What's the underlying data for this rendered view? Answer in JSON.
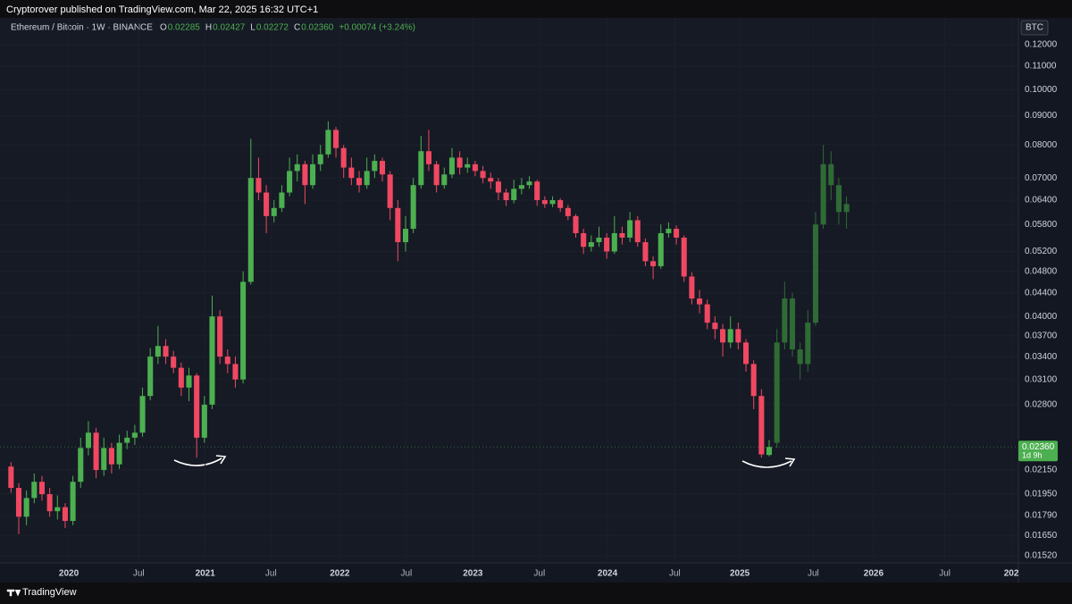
{
  "header": {
    "publisher": "Cryptorover published on TradingView.com, Mar 22, 2025 16:32 UTC+1",
    "footer_brand": "TradingView"
  },
  "chart_data": {
    "type": "candlestick",
    "title": "Ethereum / Bitcoin · 1W · BINANCE",
    "legend_values": [
      {
        "key": "O",
        "value": "0.02285"
      },
      {
        "key": "H",
        "value": "0.02427"
      },
      {
        "key": "L",
        "value": "0.02272"
      },
      {
        "key": "C",
        "value": "0.02360"
      }
    ],
    "change": "+0.00074 (+3.24%)",
    "y_axis_label": "BTC",
    "price_tag": {
      "label": "0.02360",
      "countdown": "1d 9h"
    },
    "log_scale": true,
    "up_color": "#4caf50",
    "down_color": "#f04862",
    "projection_color": "#2f6b35",
    "ylim": [
      0.01477,
      0.1337
    ],
    "yticks": [
      {
        "value": 0.12,
        "label": "0.12000"
      },
      {
        "value": 0.11,
        "label": "0.11000"
      },
      {
        "value": 0.1,
        "label": "0.10000"
      },
      {
        "value": 0.09,
        "label": "0.09000"
      },
      {
        "value": 0.08,
        "label": "0.08000"
      },
      {
        "value": 0.07,
        "label": "0.07000"
      },
      {
        "value": 0.064,
        "label": "0.06400"
      },
      {
        "value": 0.058,
        "label": "0.05800"
      },
      {
        "value": 0.052,
        "label": "0.05200"
      },
      {
        "value": 0.048,
        "label": "0.04800"
      },
      {
        "value": 0.044,
        "label": "0.04400"
      },
      {
        "value": 0.04,
        "label": "0.04000"
      },
      {
        "value": 0.037,
        "label": "0.03700"
      },
      {
        "value": 0.034,
        "label": "0.03400"
      },
      {
        "value": 0.031,
        "label": "0.03100"
      },
      {
        "value": 0.028,
        "label": "0.02800"
      },
      {
        "value": 0.0215,
        "label": "0.02150"
      },
      {
        "value": 0.0195,
        "label": "0.01950"
      },
      {
        "value": 0.0179,
        "label": "0.01790"
      },
      {
        "value": 0.0165,
        "label": "0.01650"
      },
      {
        "value": 0.0152,
        "label": "0.01520"
      }
    ],
    "xticks": [
      {
        "value": 7.47,
        "label": "2020"
      },
      {
        "value": 16.5,
        "label": "Jul"
      },
      {
        "value": 25.1,
        "label": "2021"
      },
      {
        "value": 33.6,
        "label": "Jul"
      },
      {
        "value": 42.5,
        "label": "2022"
      },
      {
        "value": 51.1,
        "label": "Jul"
      },
      {
        "value": 59.7,
        "label": "2023"
      },
      {
        "value": 68.3,
        "label": "Jul"
      },
      {
        "value": 77.1,
        "label": "2024"
      },
      {
        "value": 85.8,
        "label": "Jul"
      },
      {
        "value": 94.2,
        "label": "2025"
      },
      {
        "value": 103.7,
        "label": "Jul"
      },
      {
        "value": 111.5,
        "label": "2026"
      },
      {
        "value": 120.7,
        "label": "Jul"
      },
      {
        "value": 129.3,
        "label": "202"
      }
    ],
    "candles": [
      [
        0.0218,
        0.0222,
        0.0196,
        0.02
      ],
      [
        0.02,
        0.0204,
        0.0166,
        0.0178
      ],
      [
        0.0178,
        0.0198,
        0.0172,
        0.0192
      ],
      [
        0.0192,
        0.0212,
        0.0188,
        0.0205
      ],
      [
        0.0205,
        0.021,
        0.019,
        0.0195
      ],
      [
        0.0195,
        0.02,
        0.0178,
        0.0182
      ],
      [
        0.0182,
        0.0194,
        0.0176,
        0.0185
      ],
      [
        0.0185,
        0.0188,
        0.017,
        0.0175
      ],
      [
        0.0175,
        0.021,
        0.0172,
        0.0205
      ],
      [
        0.0205,
        0.0245,
        0.02,
        0.0235
      ],
      [
        0.0235,
        0.0262,
        0.0228,
        0.025
      ],
      [
        0.025,
        0.0255,
        0.0208,
        0.0215
      ],
      [
        0.0215,
        0.0245,
        0.021,
        0.0235
      ],
      [
        0.0235,
        0.024,
        0.0212,
        0.022
      ],
      [
        0.022,
        0.0248,
        0.0216,
        0.024
      ],
      [
        0.024,
        0.0252,
        0.0234,
        0.0245
      ],
      [
        0.0245,
        0.0258,
        0.0238,
        0.025
      ],
      [
        0.025,
        0.03,
        0.0246,
        0.029
      ],
      [
        0.029,
        0.0352,
        0.0285,
        0.034
      ],
      [
        0.034,
        0.0385,
        0.033,
        0.0355
      ],
      [
        0.0355,
        0.0365,
        0.033,
        0.034
      ],
      [
        0.034,
        0.0348,
        0.0318,
        0.0325
      ],
      [
        0.0325,
        0.0332,
        0.029,
        0.03
      ],
      [
        0.03,
        0.0325,
        0.0284,
        0.0315
      ],
      [
        0.0315,
        0.0318,
        0.0226,
        0.0245
      ],
      [
        0.0245,
        0.029,
        0.024,
        0.028
      ],
      [
        0.028,
        0.0435,
        0.0275,
        0.04
      ],
      [
        0.04,
        0.041,
        0.033,
        0.034
      ],
      [
        0.034,
        0.035,
        0.0318,
        0.033
      ],
      [
        0.033,
        0.034,
        0.03,
        0.031
      ],
      [
        0.031,
        0.048,
        0.0305,
        0.046
      ],
      [
        0.046,
        0.082,
        0.0455,
        0.07
      ],
      [
        0.07,
        0.076,
        0.064,
        0.066
      ],
      [
        0.066,
        0.068,
        0.056,
        0.06
      ],
      [
        0.06,
        0.064,
        0.0585,
        0.062
      ],
      [
        0.062,
        0.068,
        0.061,
        0.066
      ],
      [
        0.066,
        0.076,
        0.065,
        0.072
      ],
      [
        0.072,
        0.077,
        0.069,
        0.074
      ],
      [
        0.074,
        0.075,
        0.063,
        0.068
      ],
      [
        0.068,
        0.077,
        0.067,
        0.074
      ],
      [
        0.074,
        0.08,
        0.072,
        0.077
      ],
      [
        0.077,
        0.088,
        0.076,
        0.085
      ],
      [
        0.085,
        0.086,
        0.076,
        0.079
      ],
      [
        0.079,
        0.08,
        0.07,
        0.073
      ],
      [
        0.073,
        0.076,
        0.068,
        0.07
      ],
      [
        0.07,
        0.072,
        0.066,
        0.068
      ],
      [
        0.068,
        0.076,
        0.067,
        0.072
      ],
      [
        0.072,
        0.077,
        0.07,
        0.075
      ],
      [
        0.075,
        0.076,
        0.069,
        0.071
      ],
      [
        0.071,
        0.072,
        0.059,
        0.062
      ],
      [
        0.062,
        0.064,
        0.05,
        0.054
      ],
      [
        0.054,
        0.06,
        0.052,
        0.057
      ],
      [
        0.057,
        0.07,
        0.056,
        0.068
      ],
      [
        0.068,
        0.083,
        0.067,
        0.078
      ],
      [
        0.078,
        0.085,
        0.072,
        0.074
      ],
      [
        0.074,
        0.075,
        0.066,
        0.068
      ],
      [
        0.068,
        0.073,
        0.067,
        0.071
      ],
      [
        0.071,
        0.079,
        0.07,
        0.076
      ],
      [
        0.076,
        0.078,
        0.071,
        0.073
      ],
      [
        0.073,
        0.076,
        0.0715,
        0.074
      ],
      [
        0.074,
        0.075,
        0.0705,
        0.072
      ],
      [
        0.072,
        0.0735,
        0.0685,
        0.07
      ],
      [
        0.07,
        0.0715,
        0.067,
        0.069
      ],
      [
        0.069,
        0.07,
        0.064,
        0.066
      ],
      [
        0.066,
        0.067,
        0.0625,
        0.064
      ],
      [
        0.064,
        0.0695,
        0.0632,
        0.067
      ],
      [
        0.067,
        0.07,
        0.0655,
        0.068
      ],
      [
        0.068,
        0.0705,
        0.067,
        0.069
      ],
      [
        0.069,
        0.0695,
        0.0625,
        0.064
      ],
      [
        0.064,
        0.065,
        0.062,
        0.063
      ],
      [
        0.063,
        0.065,
        0.0622,
        0.064
      ],
      [
        0.064,
        0.0645,
        0.061,
        0.062
      ],
      [
        0.062,
        0.0628,
        0.059,
        0.06
      ],
      [
        0.06,
        0.0605,
        0.055,
        0.056
      ],
      [
        0.056,
        0.057,
        0.0515,
        0.053
      ],
      [
        0.053,
        0.0555,
        0.052,
        0.054
      ],
      [
        0.054,
        0.0575,
        0.053,
        0.055
      ],
      [
        0.055,
        0.056,
        0.0505,
        0.052
      ],
      [
        0.052,
        0.06,
        0.0515,
        0.056
      ],
      [
        0.056,
        0.0575,
        0.0535,
        0.055
      ],
      [
        0.055,
        0.061,
        0.054,
        0.059
      ],
      [
        0.059,
        0.06,
        0.053,
        0.054
      ],
      [
        0.054,
        0.0548,
        0.049,
        0.05
      ],
      [
        0.05,
        0.051,
        0.0465,
        0.049
      ],
      [
        0.049,
        0.058,
        0.0485,
        0.056
      ],
      [
        0.056,
        0.0585,
        0.055,
        0.057
      ],
      [
        0.057,
        0.0578,
        0.0535,
        0.055
      ],
      [
        0.055,
        0.0555,
        0.046,
        0.047
      ],
      [
        0.047,
        0.0478,
        0.042,
        0.043
      ],
      [
        0.043,
        0.0445,
        0.0405,
        0.042
      ],
      [
        0.042,
        0.0428,
        0.038,
        0.039
      ],
      [
        0.039,
        0.04,
        0.0365,
        0.038
      ],
      [
        0.038,
        0.0388,
        0.034,
        0.036
      ],
      [
        0.036,
        0.04,
        0.0352,
        0.038
      ],
      [
        0.038,
        0.039,
        0.035,
        0.036
      ],
      [
        0.036,
        0.0365,
        0.032,
        0.033
      ],
      [
        0.033,
        0.0335,
        0.0275,
        0.029
      ],
      [
        0.029,
        0.0298,
        0.0226,
        0.0229
      ],
      [
        0.02285,
        0.02427,
        0.02272,
        0.0236
      ]
    ],
    "projection": [
      [
        0.024,
        0.038,
        0.0235,
        0.036
      ],
      [
        0.036,
        0.046,
        0.035,
        0.043
      ],
      [
        0.043,
        0.044,
        0.034,
        0.035
      ],
      [
        0.035,
        0.036,
        0.031,
        0.033
      ],
      [
        0.033,
        0.041,
        0.032,
        0.039
      ],
      [
        0.039,
        0.061,
        0.0385,
        0.058
      ],
      [
        0.058,
        0.08,
        0.057,
        0.074
      ],
      [
        0.074,
        0.078,
        0.064,
        0.068
      ],
      [
        0.068,
        0.07,
        0.058,
        0.061
      ],
      [
        0.061,
        0.065,
        0.057,
        0.063
      ]
    ]
  }
}
